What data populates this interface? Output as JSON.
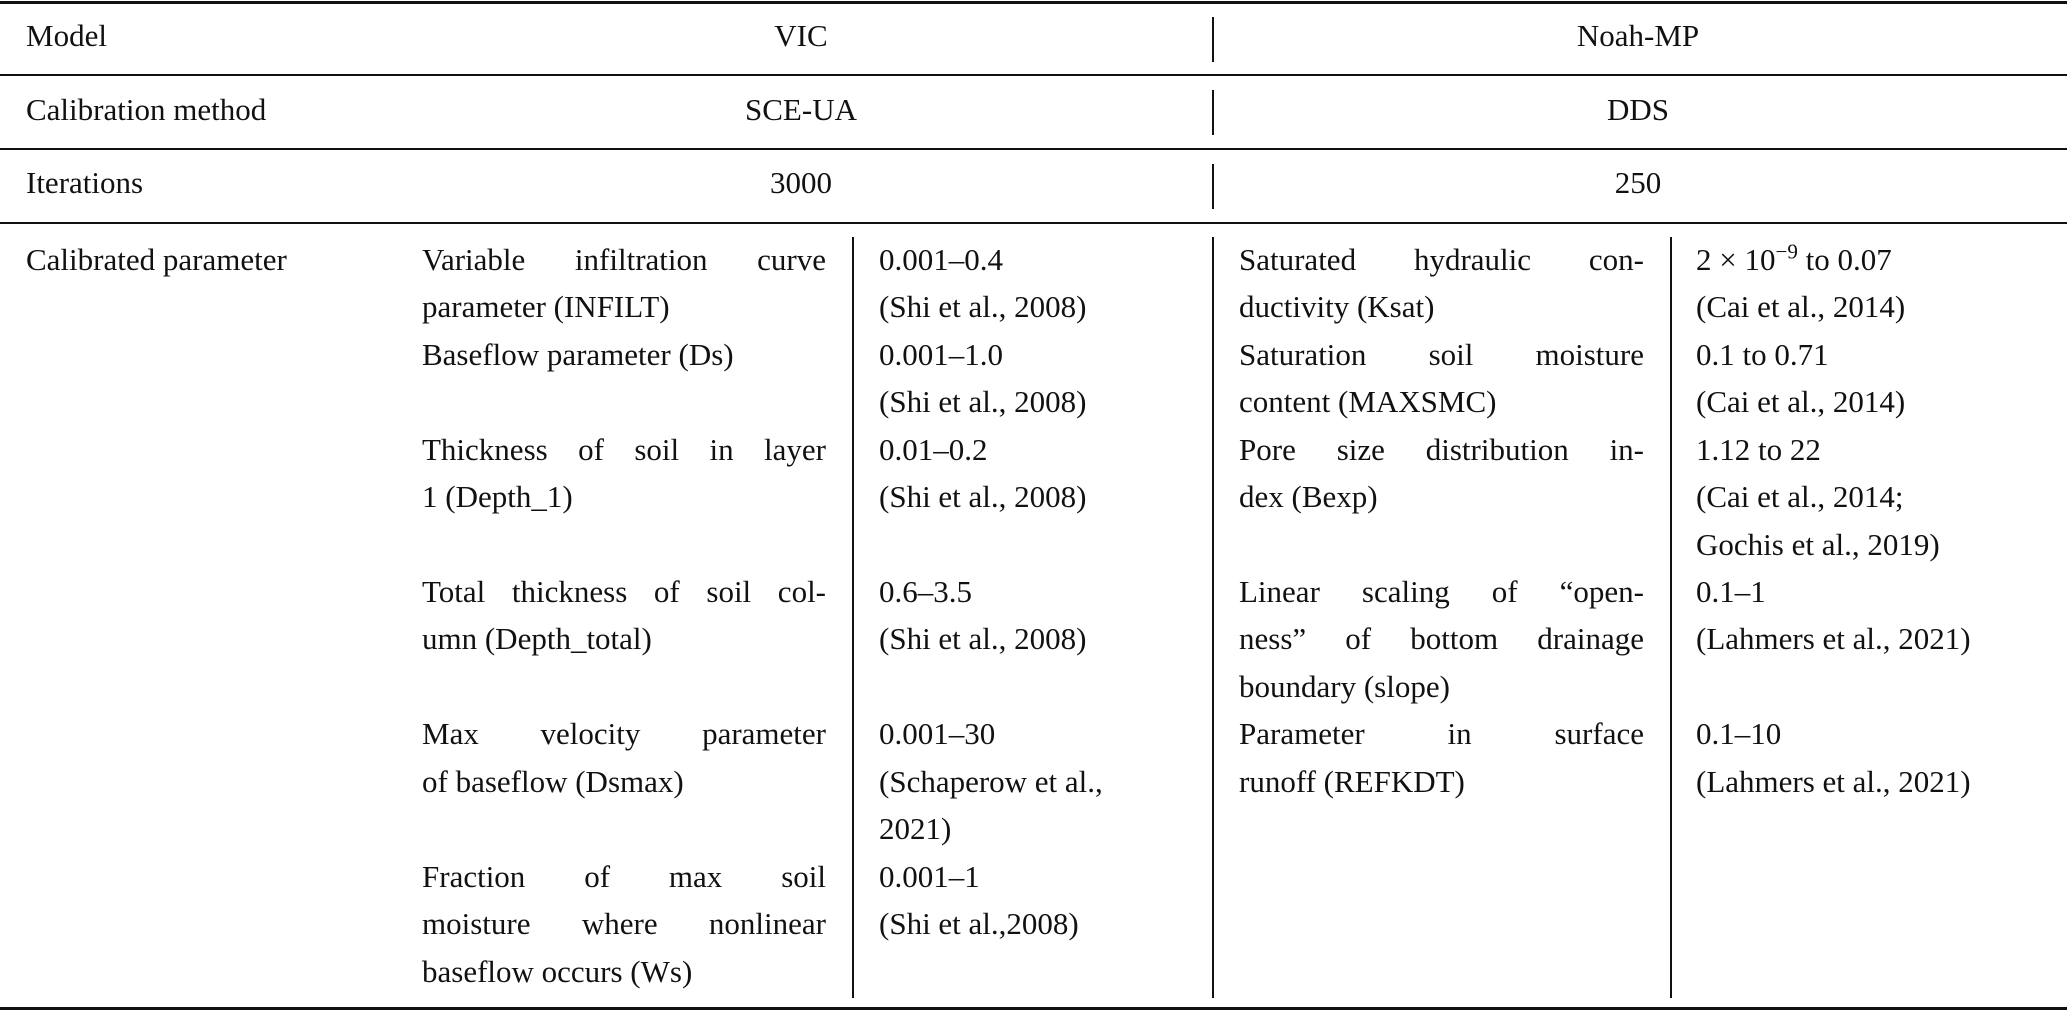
{
  "table": {
    "header_rows": [
      {
        "label": "Model",
        "vic": "VIC",
        "noah": "Noah-MP"
      },
      {
        "label": "Calibration method",
        "vic": "SCE-UA",
        "noah": "DDS"
      },
      {
        "label": "Iterations",
        "vic": "3000",
        "noah": "250"
      }
    ],
    "parameter_label": "Calibrated parameter",
    "vic_parameters": [
      {
        "name": [
          "Variable infiltration curve",
          "parameter (INFILT)"
        ],
        "range": [
          "0.001–0.4",
          "(Shi et al., 2008)"
        ]
      },
      {
        "name": [
          "Baseflow parameter (Ds)"
        ],
        "range": [
          "0.001–1.0",
          "(Shi et al., 2008)"
        ]
      },
      {
        "name": [
          "Thickness of soil in layer",
          "1 (Depth_1)"
        ],
        "range": [
          "0.01–0.2",
          "(Shi et al., 2008)"
        ]
      },
      {
        "name": [
          "Total thickness of soil col-",
          "umn (Depth_total)"
        ],
        "range": [
          "0.6–3.5",
          "(Shi et al., 2008)"
        ]
      },
      {
        "name": [
          "Max velocity parameter",
          "of baseflow (Dsmax)"
        ],
        "range": [
          "0.001–30",
          "(Schaperow et al.,",
          "2021)"
        ]
      },
      {
        "name": [
          "Fraction of max soil",
          "moisture where nonlinear",
          "baseflow occurs (Ws)"
        ],
        "range": [
          "0.001–1",
          "(Shi et al.,2008)"
        ]
      }
    ],
    "noah_parameters": [
      {
        "name": [
          "Saturated hydraulic con-",
          "ductivity (Ksat)"
        ],
        "range": [
          {
            "base": "2 × 10",
            "sup": "−9",
            "tail": " to 0.07"
          },
          "(Cai et al., 2014)"
        ]
      },
      {
        "name": [
          "Saturation soil moisture",
          "content (MAXSMC)"
        ],
        "range": [
          "0.1 to 0.71",
          "(Cai et al., 2014)"
        ]
      },
      {
        "name": [
          "Pore size distribution in-",
          "dex (Bexp)"
        ],
        "range": [
          "1.12 to 22",
          "(Cai et al., 2014;",
          "Gochis et al., 2019)"
        ]
      },
      {
        "name": [
          "Linear scaling of “open-",
          "ness” of bottom drainage",
          "boundary (slope)"
        ],
        "range": [
          "0.1–1",
          "(Lahmers et al., 2021)"
        ]
      },
      {
        "name": [
          "Parameter in surface",
          "runoff (REFKDT)"
        ],
        "range": [
          "0.1–10",
          "(Lahmers et al., 2021)"
        ]
      }
    ]
  }
}
